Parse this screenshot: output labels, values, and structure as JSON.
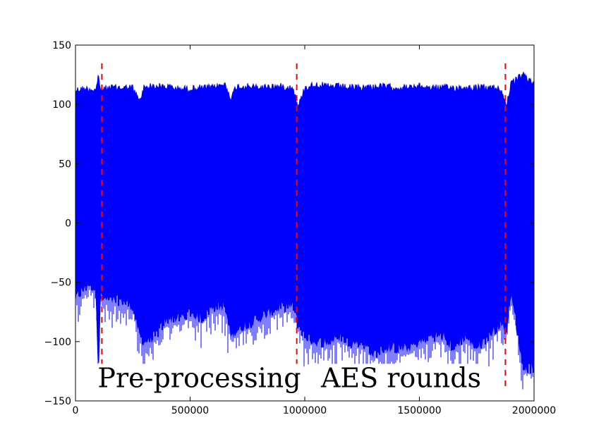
{
  "chart_data": {
    "type": "line",
    "title": "",
    "xlabel": "",
    "ylabel": "",
    "xlim": [
      0,
      2000000
    ],
    "ylim": [
      -150,
      150
    ],
    "x_ticks": [
      {
        "value": 0,
        "label": "0"
      },
      {
        "value": 500000,
        "label": "500000"
      },
      {
        "value": 1000000,
        "label": "1000000"
      },
      {
        "value": 1500000,
        "label": "1500000"
      },
      {
        "value": 2000000,
        "label": "2000000"
      }
    ],
    "y_ticks": [
      {
        "value": 150,
        "label": "150"
      },
      {
        "value": 100,
        "label": "100"
      },
      {
        "value": 50,
        "label": "50"
      },
      {
        "value": 0,
        "label": "0"
      },
      {
        "value": -50,
        "label": "−50"
      },
      {
        "value": -100,
        "label": "−100"
      },
      {
        "value": -150,
        "label": "−150"
      }
    ],
    "grid": false,
    "series": [
      {
        "color": "#0000ff",
        "envelope": {
          "x": [
            0,
            30000,
            60000,
            90000,
            100000,
            110000,
            120000,
            150000,
            200000,
            250000,
            280000,
            300000,
            350000,
            400000,
            450000,
            500000,
            550000,
            600000,
            650000,
            680000,
            700000,
            750000,
            800000,
            850000,
            900000,
            950000,
            970000,
            1000000,
            1050000,
            1100000,
            1150000,
            1200000,
            1250000,
            1300000,
            1350000,
            1400000,
            1450000,
            1500000,
            1550000,
            1600000,
            1650000,
            1700000,
            1750000,
            1800000,
            1850000,
            1880000,
            1900000,
            1950000,
            2000000
          ],
          "upper": [
            115,
            116,
            116,
            115,
            128,
            114,
            116,
            117,
            117,
            117,
            105,
            118,
            118,
            118,
            116,
            116,
            117,
            117,
            120,
            108,
            118,
            118,
            117,
            118,
            118,
            117,
            100,
            117,
            120,
            118,
            118,
            117,
            117,
            118,
            118,
            117,
            117,
            118,
            117,
            117,
            117,
            117,
            117,
            117,
            117,
            103,
            120,
            128,
            120
          ],
          "lower": [
            -68,
            -62,
            -55,
            -62,
            -130,
            -62,
            -68,
            -70,
            -70,
            -75,
            -100,
            -105,
            -100,
            -85,
            -85,
            -80,
            -85,
            -75,
            -75,
            -100,
            -95,
            -90,
            -85,
            -80,
            -75,
            -75,
            -90,
            -100,
            -105,
            -105,
            -100,
            -105,
            -105,
            -115,
            -110,
            -110,
            -110,
            -105,
            -100,
            -100,
            -110,
            -100,
            -110,
            -100,
            -90,
            -95,
            -60,
            -125,
            -128
          ]
        }
      }
    ],
    "vlines": [
      {
        "x": 115000,
        "color": "#ff0000",
        "style": "dashed"
      },
      {
        "x": 965000,
        "color": "#ff0000",
        "style": "dashed"
      },
      {
        "x": 1875000,
        "color": "#ff0000",
        "style": "dashed"
      }
    ],
    "annotations": [
      {
        "text": "Pre-processing",
        "x": 540000,
        "y": -130
      },
      {
        "text": "AES rounds",
        "x": 1420000,
        "y": -130
      }
    ]
  }
}
